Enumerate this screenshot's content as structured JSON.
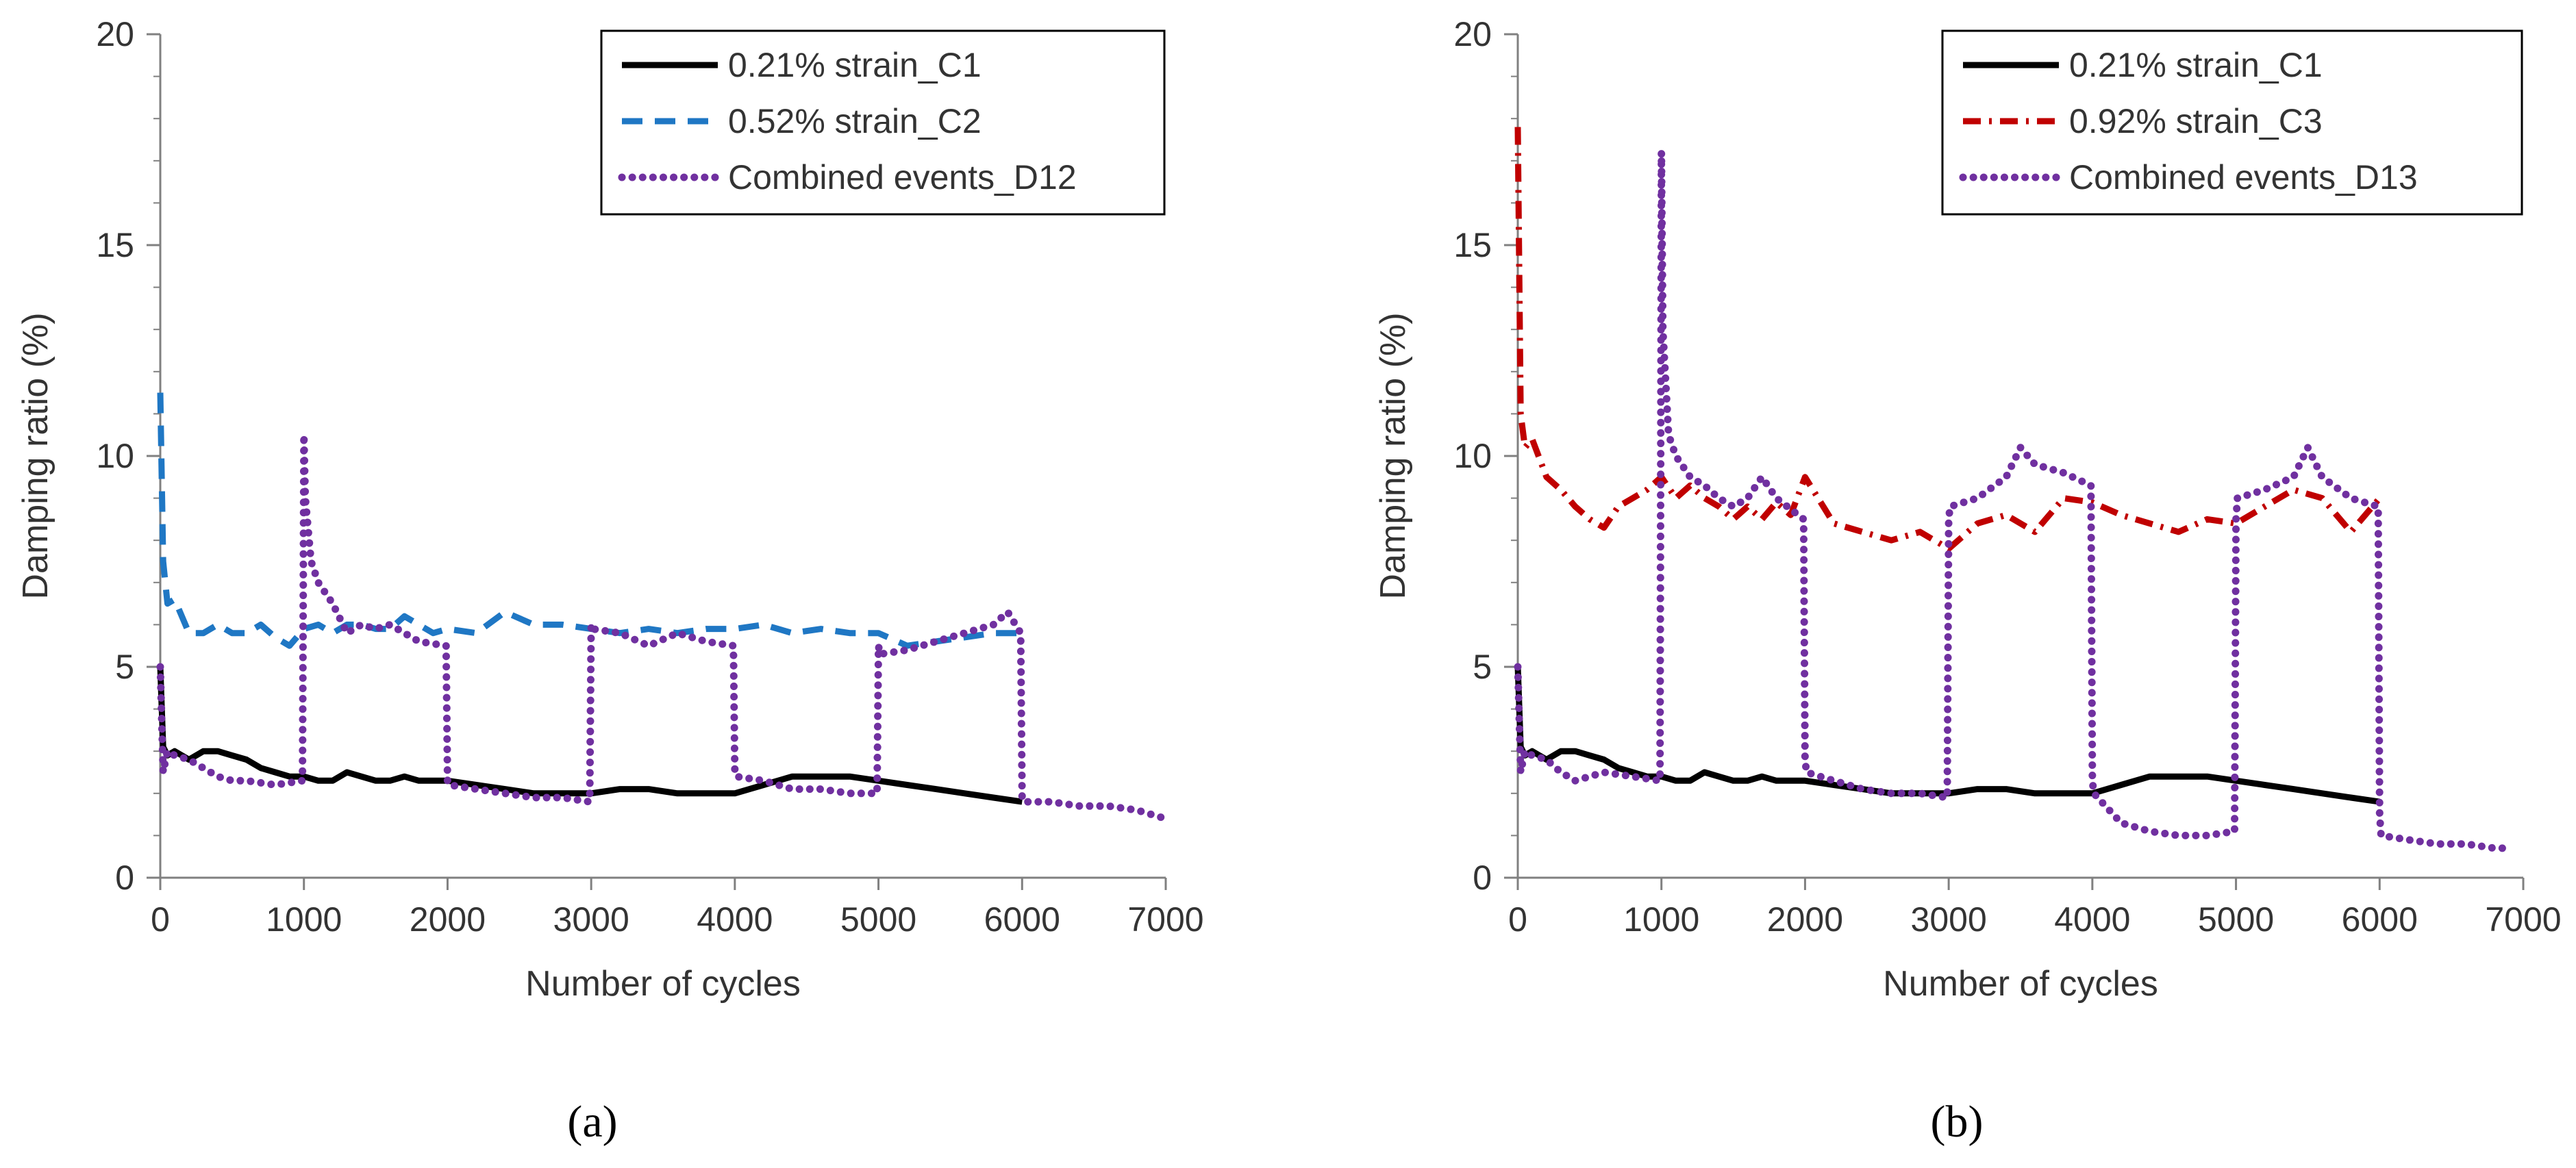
{
  "chart_data": [
    {
      "panel": "(a)",
      "type": "line",
      "xlabel": "Number of cycles",
      "ylabel": "Damping ratio (%)",
      "xlim": [
        0,
        7000
      ],
      "ylim": [
        0,
        20
      ],
      "xticks": [
        "0",
        "1000",
        "2000",
        "3000",
        "4000",
        "5000",
        "6000",
        "7000"
      ],
      "yticks": [
        "0",
        "5",
        "10",
        "15",
        "20"
      ],
      "legend_position": "top-right",
      "series": [
        {
          "name": "0.21% strain_C1",
          "style": "solid",
          "color": "#000000",
          "x": [
            0,
            20,
            50,
            100,
            200,
            300,
            400,
            500,
            600,
            700,
            800,
            900,
            1000,
            1100,
            1200,
            1300,
            1400,
            1500,
            1600,
            1700,
            1800,
            1900,
            2000,
            2200,
            2400,
            2600,
            2800,
            3000,
            3200,
            3400,
            3600,
            3800,
            4000,
            4200,
            4400,
            4600,
            4800,
            5000,
            5200,
            5400,
            5600,
            5800,
            6000
          ],
          "y": [
            5.0,
            3.1,
            2.9,
            3.0,
            2.8,
            3.0,
            3.0,
            2.9,
            2.8,
            2.6,
            2.5,
            2.4,
            2.4,
            2.3,
            2.3,
            2.5,
            2.4,
            2.3,
            2.3,
            2.4,
            2.3,
            2.3,
            2.3,
            2.2,
            2.1,
            2.0,
            2.0,
            2.0,
            2.1,
            2.1,
            2.0,
            2.0,
            2.0,
            2.2,
            2.4,
            2.4,
            2.4,
            2.3,
            2.2,
            2.1,
            2.0,
            1.9,
            1.8
          ]
        },
        {
          "name": "0.52% strain_C2",
          "style": "dashed",
          "color": "#1f77c4",
          "x": [
            0,
            20,
            50,
            100,
            200,
            300,
            400,
            500,
            600,
            700,
            800,
            900,
            1000,
            1100,
            1200,
            1300,
            1400,
            1500,
            1600,
            1700,
            1800,
            1900,
            2000,
            2200,
            2400,
            2600,
            2800,
            3000,
            3200,
            3400,
            3600,
            3800,
            4000,
            4200,
            4400,
            4600,
            4800,
            5000,
            5200,
            5400,
            5600,
            5800,
            6000
          ],
          "y": [
            11.5,
            7.5,
            6.5,
            6.6,
            5.8,
            5.8,
            6.0,
            5.8,
            5.8,
            6.0,
            5.7,
            5.5,
            5.9,
            6.0,
            5.8,
            6.0,
            6.0,
            5.9,
            5.9,
            6.2,
            6.0,
            5.8,
            5.9,
            5.8,
            6.3,
            6.0,
            6.0,
            5.9,
            5.8,
            5.9,
            5.8,
            5.9,
            5.9,
            6.0,
            5.8,
            5.9,
            5.8,
            5.8,
            5.5,
            5.6,
            5.7,
            5.8,
            5.8
          ]
        },
        {
          "name": "Combined events_D12",
          "style": "dotted",
          "color": "#7030a0",
          "x": [
            0,
            20,
            50,
            100,
            200,
            300,
            400,
            500,
            600,
            800,
            990,
            1000,
            1010,
            1050,
            1100,
            1200,
            1300,
            1400,
            1500,
            1600,
            1700,
            1800,
            1990,
            2000,
            2010,
            2200,
            2400,
            2600,
            2800,
            2990,
            3000,
            3010,
            3200,
            3400,
            3600,
            3800,
            3990,
            4000,
            4010,
            4200,
            4400,
            4600,
            4800,
            4990,
            5000,
            5010,
            5200,
            5400,
            5600,
            5800,
            5900,
            5990,
            6000,
            6010,
            6200,
            6400,
            6600,
            6800,
            7000
          ],
          "y": [
            5.0,
            2.5,
            3.0,
            2.9,
            2.8,
            2.6,
            2.4,
            2.3,
            2.3,
            2.2,
            2.3,
            10.5,
            9.0,
            7.5,
            7.0,
            6.5,
            5.8,
            6.0,
            5.9,
            6.0,
            5.8,
            5.6,
            5.5,
            2.3,
            2.2,
            2.1,
            2.0,
            1.9,
            1.9,
            1.8,
            6.0,
            5.9,
            5.8,
            5.5,
            5.8,
            5.6,
            5.5,
            2.5,
            2.4,
            2.3,
            2.1,
            2.1,
            2.0,
            2.0,
            5.5,
            5.3,
            5.4,
            5.6,
            5.8,
            6.0,
            6.3,
            5.8,
            1.9,
            1.8,
            1.8,
            1.7,
            1.7,
            1.6,
            1.4
          ]
        }
      ]
    },
    {
      "panel": "(b)",
      "type": "line",
      "xlabel": "Number of cycles",
      "ylabel": "Damping ratio (%)",
      "xlim": [
        0,
        7000
      ],
      "ylim": [
        0,
        20
      ],
      "xticks": [
        "0",
        "1000",
        "2000",
        "3000",
        "4000",
        "5000",
        "6000",
        "7000"
      ],
      "yticks": [
        "0",
        "5",
        "10",
        "15",
        "20"
      ],
      "legend_position": "top-right",
      "series": [
        {
          "name": "0.21% strain_C1",
          "style": "solid",
          "color": "#000000",
          "x": [
            0,
            20,
            50,
            100,
            200,
            300,
            400,
            500,
            600,
            700,
            800,
            900,
            1000,
            1100,
            1200,
            1300,
            1400,
            1500,
            1600,
            1700,
            1800,
            1900,
            2000,
            2200,
            2400,
            2600,
            2800,
            3000,
            3200,
            3400,
            3600,
            3800,
            4000,
            4200,
            4400,
            4600,
            4800,
            5000,
            5200,
            5400,
            5600,
            5800,
            6000
          ],
          "y": [
            5.0,
            3.1,
            2.9,
            3.0,
            2.8,
            3.0,
            3.0,
            2.9,
            2.8,
            2.6,
            2.5,
            2.4,
            2.4,
            2.3,
            2.3,
            2.5,
            2.4,
            2.3,
            2.3,
            2.4,
            2.3,
            2.3,
            2.3,
            2.2,
            2.1,
            2.0,
            2.0,
            2.0,
            2.1,
            2.1,
            2.0,
            2.0,
            2.0,
            2.2,
            2.4,
            2.4,
            2.4,
            2.3,
            2.2,
            2.1,
            2.0,
            1.9,
            1.8
          ]
        },
        {
          "name": "0.92% strain_C3",
          "style": "dash-dot",
          "color": "#c00000",
          "x": [
            0,
            20,
            50,
            100,
            200,
            300,
            400,
            500,
            600,
            700,
            800,
            900,
            1000,
            1100,
            1200,
            1300,
            1400,
            1500,
            1600,
            1700,
            1800,
            1900,
            2000,
            2200,
            2400,
            2600,
            2800,
            3000,
            3200,
            3400,
            3600,
            3800,
            4000,
            4200,
            4400,
            4600,
            4800,
            5000,
            5200,
            5400,
            5600,
            5800,
            6000
          ],
          "y": [
            17.8,
            11.0,
            10.2,
            10.4,
            9.5,
            9.2,
            8.8,
            8.5,
            8.3,
            8.8,
            9.0,
            9.2,
            9.5,
            9.0,
            9.3,
            9.0,
            8.8,
            8.5,
            8.8,
            8.5,
            8.9,
            8.6,
            9.5,
            8.4,
            8.2,
            8.0,
            8.2,
            7.8,
            8.4,
            8.6,
            8.2,
            9.0,
            8.9,
            8.6,
            8.4,
            8.2,
            8.5,
            8.4,
            8.8,
            9.2,
            9.0,
            8.2,
            9.0
          ]
        },
        {
          "name": "Combined events_D13",
          "style": "dotted",
          "color": "#7030a0",
          "x": [
            0,
            20,
            50,
            100,
            200,
            300,
            400,
            500,
            600,
            800,
            990,
            1000,
            1010,
            1050,
            1100,
            1200,
            1300,
            1400,
            1500,
            1600,
            1700,
            1800,
            1990,
            2000,
            2010,
            2200,
            2400,
            2600,
            2800,
            2990,
            3000,
            3010,
            3200,
            3400,
            3500,
            3600,
            3800,
            3990,
            4000,
            4010,
            4200,
            4400,
            4600,
            4800,
            4990,
            5000,
            5010,
            5200,
            5400,
            5500,
            5600,
            5800,
            5990,
            6000,
            6010,
            6200,
            6400,
            6600,
            6800,
            6900
          ],
          "y": [
            5.0,
            2.5,
            3.0,
            2.9,
            2.8,
            2.5,
            2.3,
            2.4,
            2.5,
            2.4,
            2.3,
            17.2,
            13.0,
            10.5,
            10.0,
            9.5,
            9.3,
            9.0,
            8.8,
            9.0,
            9.5,
            9.0,
            8.5,
            2.8,
            2.5,
            2.3,
            2.1,
            2.0,
            2.0,
            1.9,
            8.5,
            8.8,
            9.0,
            9.5,
            10.2,
            9.8,
            9.6,
            9.3,
            2.3,
            2.0,
            1.3,
            1.1,
            1.0,
            1.0,
            1.1,
            8.5,
            9.0,
            9.2,
            9.5,
            10.2,
            9.5,
            9.0,
            8.8,
            1.5,
            1.0,
            0.9,
            0.8,
            0.8,
            0.7,
            0.7
          ]
        }
      ]
    }
  ],
  "panel_labels": [
    "(a)",
    "(b)"
  ]
}
